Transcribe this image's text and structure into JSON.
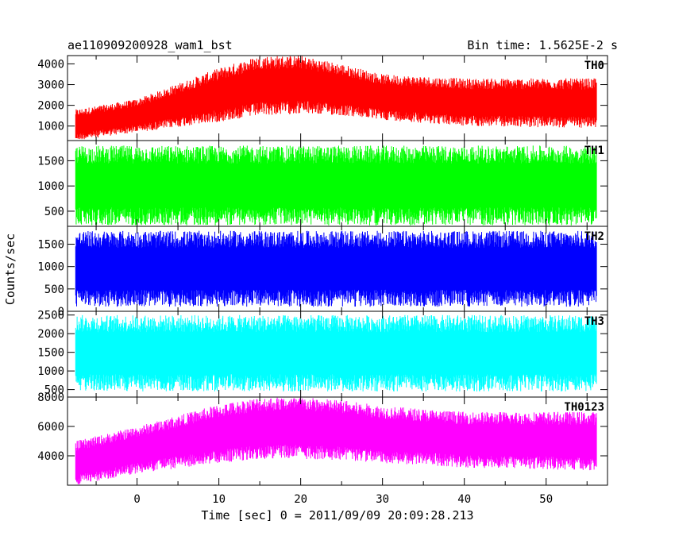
{
  "header": {
    "left_title": "ae110909200928_wam1_bst",
    "right_title": "Bin time: 1.5625E-2 s"
  },
  "axis": {
    "ylabel": "Counts/sec",
    "xlabel": "Time [sec] 0 = 2011/09/09 20:09:28.213"
  },
  "chart_data": {
    "type": "line",
    "x_range": [
      -8.5,
      57.5
    ],
    "x_ticks": [
      0,
      10,
      20,
      30,
      40,
      50
    ],
    "x_tick_labels": [
      "0",
      "10",
      "20",
      "30",
      "40",
      "50"
    ],
    "data_x_range": [
      -7.5,
      56.2
    ],
    "shared_x": true,
    "grid": false,
    "panels": [
      {
        "name": "TH0",
        "color": "#ff0000",
        "ylim": [
          300,
          4400
        ],
        "y_ticks": [
          1000,
          2000,
          3000,
          4000
        ],
        "y_tick_labels": [
          "1000",
          "2000",
          "3000",
          "4000"
        ],
        "envelope_time": [
          -7.5,
          0,
          10,
          15,
          20,
          25,
          30,
          40,
          56
        ],
        "envelope_min": [
          300,
          700,
          1200,
          1500,
          1600,
          1500,
          1300,
          1000,
          900
        ],
        "envelope_max": [
          1800,
          2300,
          3800,
          4400,
          4400,
          4000,
          3500,
          3300,
          3300
        ]
      },
      {
        "name": "TH1",
        "color": "#00ff00",
        "ylim": [
          200,
          1900
        ],
        "y_ticks": [
          500,
          1000,
          1500
        ],
        "y_tick_labels": [
          "500",
          "1000",
          "1500"
        ],
        "envelope_time": [
          -7.5,
          56
        ],
        "envelope_min": [
          220,
          220
        ],
        "envelope_max": [
          1800,
          1800
        ]
      },
      {
        "name": "TH2",
        "color": "#0000ff",
        "ylim": [
          0,
          1900
        ],
        "y_ticks": [
          0,
          500,
          1000,
          1500
        ],
        "y_tick_labels": [
          "0",
          "500",
          "1000",
          "1500"
        ],
        "envelope_time": [
          -7.5,
          56
        ],
        "envelope_min": [
          100,
          100
        ],
        "envelope_max": [
          1800,
          1800
        ]
      },
      {
        "name": "TH3",
        "color": "#00ffff",
        "ylim": [
          300,
          2600
        ],
        "y_ticks": [
          500,
          1000,
          1500,
          2000,
          2500
        ],
        "y_tick_labels": [
          "500",
          "1000",
          "1500",
          "2000",
          "2500"
        ],
        "envelope_time": [
          -7.5,
          56
        ],
        "envelope_min": [
          450,
          450
        ],
        "envelope_max": [
          2500,
          2500
        ]
      },
      {
        "name": "TH0123",
        "color": "#ff00ff",
        "ylim": [
          2000,
          8000
        ],
        "y_ticks": [
          4000,
          6000,
          8000
        ],
        "y_tick_labels": [
          "4000",
          "6000",
          "8000"
        ],
        "envelope_time": [
          -7.5,
          0,
          10,
          15,
          20,
          25,
          30,
          40,
          56
        ],
        "envelope_min": [
          2000,
          2800,
          3500,
          3800,
          3800,
          3700,
          3500,
          3200,
          3000
        ],
        "envelope_max": [
          5000,
          6000,
          7500,
          8000,
          8000,
          7800,
          7400,
          7000,
          7000
        ]
      }
    ]
  }
}
